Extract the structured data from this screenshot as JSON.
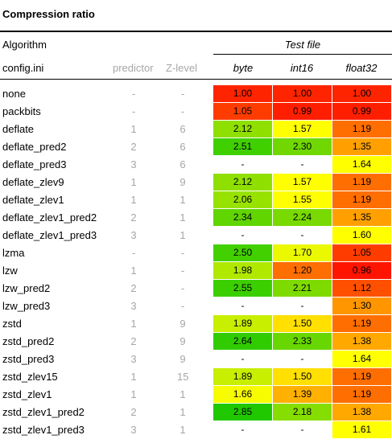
{
  "title": "Compression ratio",
  "header": {
    "algorithm": "Algorithm",
    "test_file": "Test file",
    "config": "config.ini",
    "predictor": "predictor",
    "zlevel": "Z-level",
    "columns": [
      "byte",
      "int16",
      "float32"
    ]
  },
  "rows": [
    {
      "name": "none",
      "predictor": "-",
      "zlevel": "-",
      "values": [
        "1.00",
        "1.00",
        "1.00"
      ],
      "colors": [
        "#ff2400",
        "#ff2400",
        "#ff2400"
      ]
    },
    {
      "name": "packbits",
      "predictor": "-",
      "zlevel": "-",
      "values": [
        "1.05",
        "0.99",
        "0.99"
      ],
      "colors": [
        "#ff3c00",
        "#ff1f00",
        "#ff1f00"
      ]
    },
    {
      "name": "deflate",
      "predictor": "1",
      "zlevel": "6",
      "values": [
        "2.12",
        "1.57",
        "1.19"
      ],
      "colors": [
        "#8fe000",
        "#ffff00",
        "#ff6e00"
      ]
    },
    {
      "name": "deflate_pred2",
      "predictor": "2",
      "zlevel": "6",
      "values": [
        "2.51",
        "2.30",
        "1.35"
      ],
      "colors": [
        "#40d000",
        "#70d800",
        "#ffa000"
      ]
    },
    {
      "name": "deflate_pred3",
      "predictor": "3",
      "zlevel": "6",
      "values": [
        "-",
        "-",
        "1.64"
      ],
      "colors": [
        "",
        "",
        "#ffff00"
      ]
    },
    {
      "name": "deflate_zlev9",
      "predictor": "1",
      "zlevel": "9",
      "values": [
        "2.12",
        "1.57",
        "1.19"
      ],
      "colors": [
        "#8fe000",
        "#ffff00",
        "#ff6e00"
      ]
    },
    {
      "name": "deflate_zlev1",
      "predictor": "1",
      "zlevel": "1",
      "values": [
        "2.06",
        "1.55",
        "1.19"
      ],
      "colors": [
        "#98e200",
        "#ffff00",
        "#ff6e00"
      ]
    },
    {
      "name": "deflate_zlev1_pred2",
      "predictor": "2",
      "zlevel": "1",
      "values": [
        "2.34",
        "2.24",
        "1.35"
      ],
      "colors": [
        "#60d500",
        "#78da00",
        "#ffa000"
      ]
    },
    {
      "name": "deflate_zlev1_pred3",
      "predictor": "3",
      "zlevel": "1",
      "values": [
        "-",
        "-",
        "1.60"
      ],
      "colors": [
        "",
        "",
        "#ffff00"
      ]
    },
    {
      "name": "lzma",
      "predictor": "-",
      "zlevel": "-",
      "values": [
        "2.50",
        "1.70",
        "1.05"
      ],
      "colors": [
        "#42d000",
        "#eaf800",
        "#ff3c00"
      ]
    },
    {
      "name": "lzw",
      "predictor": "1",
      "zlevel": "-",
      "values": [
        "1.98",
        "1.20",
        "0.96"
      ],
      "colors": [
        "#b0e800",
        "#ff6e00",
        "#ff1400"
      ]
    },
    {
      "name": "lzw_pred2",
      "predictor": "2",
      "zlevel": "-",
      "values": [
        "2.55",
        "2.21",
        "1.12"
      ],
      "colors": [
        "#3ccf00",
        "#7edb00",
        "#ff5000"
      ]
    },
    {
      "name": "lzw_pred3",
      "predictor": "3",
      "zlevel": "-",
      "values": [
        "-",
        "-",
        "1.30"
      ],
      "colors": [
        "",
        "",
        "#ff9600"
      ]
    },
    {
      "name": "zstd",
      "predictor": "1",
      "zlevel": "9",
      "values": [
        "1.89",
        "1.50",
        "1.19"
      ],
      "colors": [
        "#c8ee00",
        "#ffe000",
        "#ff6e00"
      ]
    },
    {
      "name": "zstd_pred2",
      "predictor": "2",
      "zlevel": "9",
      "values": [
        "2.64",
        "2.33",
        "1.38"
      ],
      "colors": [
        "#30cc00",
        "#68d700",
        "#ffa800"
      ]
    },
    {
      "name": "zstd_pred3",
      "predictor": "3",
      "zlevel": "9",
      "values": [
        "-",
        "-",
        "1.64"
      ],
      "colors": [
        "",
        "",
        "#ffff00"
      ]
    },
    {
      "name": "zstd_zlev15",
      "predictor": "1",
      "zlevel": "15",
      "values": [
        "1.89",
        "1.50",
        "1.19"
      ],
      "colors": [
        "#c8ee00",
        "#ffe000",
        "#ff6e00"
      ]
    },
    {
      "name": "zstd_zlev1",
      "predictor": "1",
      "zlevel": "1",
      "values": [
        "1.66",
        "1.39",
        "1.19"
      ],
      "colors": [
        "#f8fc00",
        "#ffb000",
        "#ff6e00"
      ]
    },
    {
      "name": "zstd_zlev1_pred2",
      "predictor": "2",
      "zlevel": "1",
      "values": [
        "2.85",
        "2.18",
        "1.38"
      ],
      "colors": [
        "#20c800",
        "#86dd00",
        "#ffa800"
      ]
    },
    {
      "name": "zstd_zlev1_pred3",
      "predictor": "3",
      "zlevel": "1",
      "values": [
        "-",
        "-",
        "1.61"
      ],
      "colors": [
        "",
        "",
        "#ffff00"
      ]
    }
  ]
}
